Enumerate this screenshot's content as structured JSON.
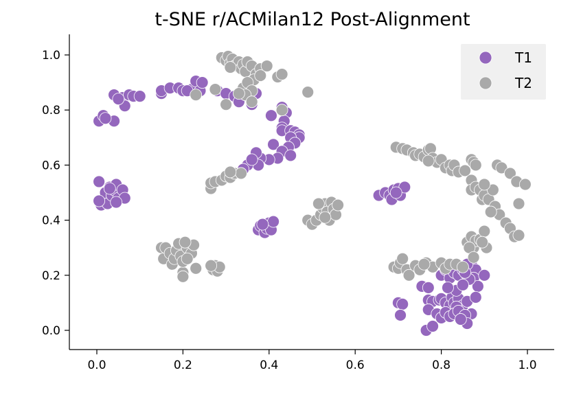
{
  "chart_data": {
    "type": "scatter",
    "title": "t-SNE r/ACMilan12 Post-Alignment",
    "xlabel": "",
    "ylabel": "",
    "xlim": [
      -0.06,
      1.06
    ],
    "ylim": [
      -0.07,
      1.07
    ],
    "x_ticks": [
      0.0,
      0.2,
      0.4,
      0.6,
      0.8,
      1.0
    ],
    "y_ticks": [
      0.0,
      0.2,
      0.4,
      0.6,
      0.8,
      1.0
    ],
    "x_tick_labels": [
      "0.0",
      "0.2",
      "0.4",
      "0.6",
      "0.8",
      "1.0"
    ],
    "y_tick_labels": [
      "0.0",
      "0.2",
      "0.4",
      "0.6",
      "0.8",
      "1.0"
    ],
    "grid": false,
    "legend_position": "top-right",
    "series": [
      {
        "name": "T1",
        "color": "#9467bd",
        "points": [
          [
            0.005,
            0.76
          ],
          [
            0.015,
            0.78
          ],
          [
            0.04,
            0.76
          ],
          [
            0.02,
            0.77
          ],
          [
            0.04,
            0.855
          ],
          [
            0.06,
            0.845
          ],
          [
            0.065,
            0.815
          ],
          [
            0.075,
            0.855
          ],
          [
            0.085,
            0.85
          ],
          [
            0.1,
            0.85
          ],
          [
            0.05,
            0.84
          ],
          [
            0.15,
            0.86
          ],
          [
            0.15,
            0.87
          ],
          [
            0.17,
            0.88
          ],
          [
            0.19,
            0.88
          ],
          [
            0.2,
            0.87
          ],
          [
            0.22,
            0.875
          ],
          [
            0.23,
            0.905
          ],
          [
            0.24,
            0.87
          ],
          [
            0.245,
            0.9
          ],
          [
            0.21,
            0.87
          ],
          [
            0.28,
            0.87
          ],
          [
            0.3,
            0.86
          ],
          [
            0.32,
            0.85
          ],
          [
            0.33,
            0.83
          ],
          [
            0.36,
            0.82
          ],
          [
            0.37,
            0.86
          ],
          [
            0.35,
            0.87
          ],
          [
            0.405,
            0.78
          ],
          [
            0.43,
            0.81
          ],
          [
            0.44,
            0.79
          ],
          [
            0.435,
            0.76
          ],
          [
            0.43,
            0.735
          ],
          [
            0.43,
            0.725
          ],
          [
            0.45,
            0.725
          ],
          [
            0.46,
            0.72
          ],
          [
            0.47,
            0.71
          ],
          [
            0.47,
            0.7
          ],
          [
            0.45,
            0.7
          ],
          [
            0.46,
            0.68
          ],
          [
            0.445,
            0.665
          ],
          [
            0.41,
            0.675
          ],
          [
            0.43,
            0.65
          ],
          [
            0.45,
            0.635
          ],
          [
            0.42,
            0.625
          ],
          [
            0.4,
            0.62
          ],
          [
            0.38,
            0.625
          ],
          [
            0.36,
            0.62
          ],
          [
            0.37,
            0.645
          ],
          [
            0.375,
            0.6
          ],
          [
            0.35,
            0.6
          ],
          [
            0.34,
            0.585
          ],
          [
            0.36,
            0.62
          ],
          [
            0.005,
            0.54
          ],
          [
            0.01,
            0.455
          ],
          [
            0.02,
            0.5
          ],
          [
            0.025,
            0.46
          ],
          [
            0.03,
            0.52
          ],
          [
            0.035,
            0.49
          ],
          [
            0.04,
            0.51
          ],
          [
            0.045,
            0.53
          ],
          [
            0.05,
            0.48
          ],
          [
            0.06,
            0.51
          ],
          [
            0.065,
            0.48
          ],
          [
            0.03,
            0.515
          ],
          [
            0.045,
            0.465
          ],
          [
            0.005,
            0.47
          ],
          [
            0.375,
            0.365
          ],
          [
            0.38,
            0.38
          ],
          [
            0.39,
            0.355
          ],
          [
            0.395,
            0.37
          ],
          [
            0.4,
            0.39
          ],
          [
            0.405,
            0.365
          ],
          [
            0.41,
            0.395
          ],
          [
            0.385,
            0.385
          ],
          [
            0.655,
            0.49
          ],
          [
            0.67,
            0.5
          ],
          [
            0.68,
            0.49
          ],
          [
            0.685,
            0.475
          ],
          [
            0.69,
            0.51
          ],
          [
            0.7,
            0.515
          ],
          [
            0.705,
            0.49
          ],
          [
            0.715,
            0.52
          ],
          [
            0.695,
            0.5
          ],
          [
            0.8,
            0.2
          ],
          [
            0.81,
            0.22
          ],
          [
            0.82,
            0.19
          ],
          [
            0.83,
            0.21
          ],
          [
            0.84,
            0.2
          ],
          [
            0.85,
            0.22
          ],
          [
            0.86,
            0.2
          ],
          [
            0.87,
            0.24
          ],
          [
            0.88,
            0.22
          ],
          [
            0.875,
            0.19
          ],
          [
            0.9,
            0.2
          ],
          [
            0.885,
            0.16
          ],
          [
            0.86,
            0.24
          ],
          [
            0.865,
            0.185
          ],
          [
            0.855,
            0.21
          ],
          [
            0.7,
            0.1
          ],
          [
            0.71,
            0.095
          ],
          [
            0.705,
            0.055
          ],
          [
            0.755,
            0.16
          ],
          [
            0.77,
            0.155
          ],
          [
            0.77,
            0.11
          ],
          [
            0.78,
            0.105
          ],
          [
            0.795,
            0.11
          ],
          [
            0.8,
            0.115
          ],
          [
            0.81,
            0.1
          ],
          [
            0.82,
            0.09
          ],
          [
            0.825,
            0.12
          ],
          [
            0.83,
            0.1
          ],
          [
            0.84,
            0.115
          ],
          [
            0.85,
            0.09
          ],
          [
            0.86,
            0.105
          ],
          [
            0.87,
            0.06
          ],
          [
            0.88,
            0.12
          ],
          [
            0.835,
            0.085
          ],
          [
            0.77,
            0.075
          ],
          [
            0.79,
            0.06
          ],
          [
            0.8,
            0.045
          ],
          [
            0.81,
            0.065
          ],
          [
            0.82,
            0.05
          ],
          [
            0.83,
            0.06
          ],
          [
            0.84,
            0.07
          ],
          [
            0.855,
            0.055
          ],
          [
            0.86,
            0.025
          ],
          [
            0.845,
            0.04
          ],
          [
            0.765,
            0.0
          ],
          [
            0.78,
            0.015
          ],
          [
            0.835,
            0.145
          ],
          [
            0.815,
            0.155
          ],
          [
            0.85,
            0.165
          ]
        ]
      },
      {
        "name": "T2",
        "color": "#a9a9a9",
        "points": [
          [
            0.29,
            0.99
          ],
          [
            0.3,
            0.98
          ],
          [
            0.305,
            0.995
          ],
          [
            0.31,
            0.97
          ],
          [
            0.315,
            0.985
          ],
          [
            0.32,
            0.96
          ],
          [
            0.33,
            0.975
          ],
          [
            0.335,
            0.95
          ],
          [
            0.34,
            0.965
          ],
          [
            0.345,
            0.94
          ],
          [
            0.35,
            0.975
          ],
          [
            0.36,
            0.96
          ],
          [
            0.31,
            0.955
          ],
          [
            0.37,
            0.93
          ],
          [
            0.365,
            0.91
          ],
          [
            0.38,
            0.95
          ],
          [
            0.38,
            0.925
          ],
          [
            0.395,
            0.96
          ],
          [
            0.42,
            0.92
          ],
          [
            0.43,
            0.93
          ],
          [
            0.34,
            0.88
          ],
          [
            0.35,
            0.9
          ],
          [
            0.36,
            0.87
          ],
          [
            0.345,
            0.855
          ],
          [
            0.33,
            0.86
          ],
          [
            0.36,
            0.83
          ],
          [
            0.3,
            0.82
          ],
          [
            0.275,
            0.875
          ],
          [
            0.23,
            0.855
          ],
          [
            0.49,
            0.865
          ],
          [
            0.265,
            0.515
          ],
          [
            0.265,
            0.535
          ],
          [
            0.275,
            0.54
          ],
          [
            0.29,
            0.545
          ],
          [
            0.3,
            0.56
          ],
          [
            0.31,
            0.555
          ],
          [
            0.32,
            0.57
          ],
          [
            0.335,
            0.57
          ],
          [
            0.31,
            0.575
          ],
          [
            0.43,
            0.8
          ],
          [
            0.15,
            0.3
          ],
          [
            0.155,
            0.26
          ],
          [
            0.16,
            0.3
          ],
          [
            0.17,
            0.28
          ],
          [
            0.175,
            0.24
          ],
          [
            0.18,
            0.26
          ],
          [
            0.185,
            0.29
          ],
          [
            0.19,
            0.315
          ],
          [
            0.195,
            0.27
          ],
          [
            0.2,
            0.21
          ],
          [
            0.2,
            0.25
          ],
          [
            0.21,
            0.3
          ],
          [
            0.22,
            0.28
          ],
          [
            0.225,
            0.31
          ],
          [
            0.23,
            0.225
          ],
          [
            0.205,
            0.32
          ],
          [
            0.2,
            0.195
          ],
          [
            0.21,
            0.26
          ],
          [
            0.27,
            0.22
          ],
          [
            0.275,
            0.235
          ],
          [
            0.28,
            0.215
          ],
          [
            0.285,
            0.23
          ],
          [
            0.265,
            0.235
          ],
          [
            0.49,
            0.4
          ],
          [
            0.5,
            0.385
          ],
          [
            0.51,
            0.4
          ],
          [
            0.52,
            0.42
          ],
          [
            0.525,
            0.445
          ],
          [
            0.53,
            0.46
          ],
          [
            0.535,
            0.43
          ],
          [
            0.54,
            0.4
          ],
          [
            0.545,
            0.465
          ],
          [
            0.55,
            0.44
          ],
          [
            0.555,
            0.42
          ],
          [
            0.56,
            0.455
          ],
          [
            0.515,
            0.46
          ],
          [
            0.53,
            0.41
          ],
          [
            0.695,
            0.665
          ],
          [
            0.71,
            0.66
          ],
          [
            0.72,
            0.655
          ],
          [
            0.735,
            0.645
          ],
          [
            0.74,
            0.635
          ],
          [
            0.75,
            0.64
          ],
          [
            0.76,
            0.63
          ],
          [
            0.77,
            0.655
          ],
          [
            0.775,
            0.66
          ],
          [
            0.78,
            0.625
          ],
          [
            0.79,
            0.61
          ],
          [
            0.8,
            0.62
          ],
          [
            0.81,
            0.59
          ],
          [
            0.82,
            0.6
          ],
          [
            0.825,
            0.58
          ],
          [
            0.83,
            0.6
          ],
          [
            0.84,
            0.575
          ],
          [
            0.855,
            0.58
          ],
          [
            0.77,
            0.615
          ],
          [
            0.87,
            0.62
          ],
          [
            0.875,
            0.61
          ],
          [
            0.88,
            0.6
          ],
          [
            0.87,
            0.545
          ],
          [
            0.87,
            0.51
          ],
          [
            0.88,
            0.52
          ],
          [
            0.89,
            0.51
          ],
          [
            0.895,
            0.475
          ],
          [
            0.9,
            0.49
          ],
          [
            0.91,
            0.475
          ],
          [
            0.92,
            0.51
          ],
          [
            0.925,
            0.45
          ],
          [
            0.935,
            0.42
          ],
          [
            0.95,
            0.39
          ],
          [
            0.96,
            0.37
          ],
          [
            0.97,
            0.34
          ],
          [
            0.98,
            0.345
          ],
          [
            0.93,
            0.6
          ],
          [
            0.94,
            0.59
          ],
          [
            0.96,
            0.57
          ],
          [
            0.975,
            0.54
          ],
          [
            0.995,
            0.53
          ],
          [
            0.98,
            0.46
          ],
          [
            0.9,
            0.53
          ],
          [
            0.915,
            0.43
          ],
          [
            0.86,
            0.32
          ],
          [
            0.87,
            0.34
          ],
          [
            0.875,
            0.3
          ],
          [
            0.88,
            0.325
          ],
          [
            0.89,
            0.33
          ],
          [
            0.9,
            0.36
          ],
          [
            0.905,
            0.3
          ],
          [
            0.895,
            0.32
          ],
          [
            0.865,
            0.3
          ],
          [
            0.69,
            0.23
          ],
          [
            0.7,
            0.225
          ],
          [
            0.705,
            0.245
          ],
          [
            0.71,
            0.26
          ],
          [
            0.72,
            0.22
          ],
          [
            0.725,
            0.2
          ],
          [
            0.74,
            0.235
          ],
          [
            0.75,
            0.22
          ],
          [
            0.765,
            0.245
          ],
          [
            0.78,
            0.23
          ],
          [
            0.8,
            0.245
          ],
          [
            0.81,
            0.225
          ],
          [
            0.82,
            0.24
          ],
          [
            0.835,
            0.24
          ],
          [
            0.85,
            0.23
          ],
          [
            0.875,
            0.265
          ],
          [
            0.76,
            0.24
          ]
        ]
      }
    ]
  }
}
